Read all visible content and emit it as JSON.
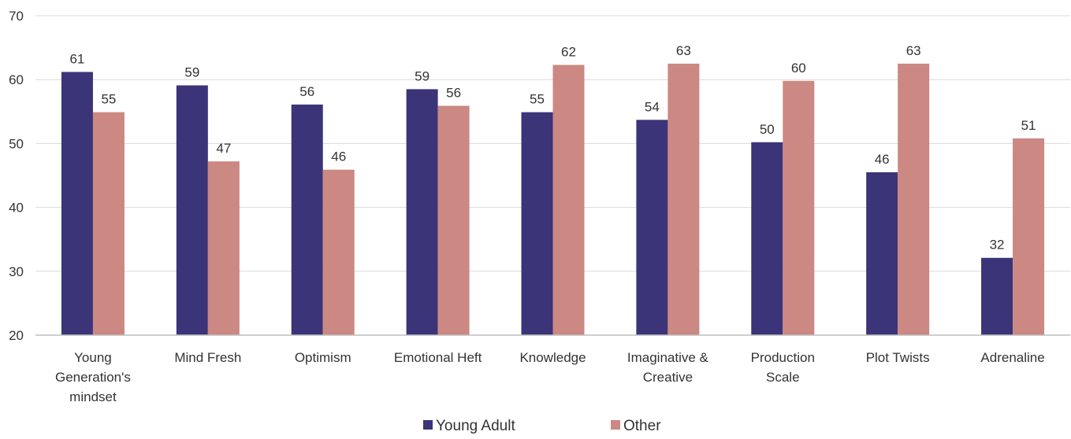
{
  "chart_data": {
    "type": "bar",
    "title": "",
    "xlabel": "",
    "ylabel": "",
    "ylim": [
      20,
      70
    ],
    "yticks": [
      20,
      30,
      40,
      50,
      60,
      70
    ],
    "grid": true,
    "legend_position": "bottom",
    "categories": [
      [
        "Young",
        "Generation's",
        "mindset"
      ],
      [
        "Mind Fresh"
      ],
      [
        "Optimism"
      ],
      [
        "Emotional Heft"
      ],
      [
        "Knowledge"
      ],
      [
        "Imaginative &",
        "Creative"
      ],
      [
        "Production",
        "Scale"
      ],
      [
        "Plot Twists"
      ],
      [
        "Adrenaline"
      ]
    ],
    "series": [
      {
        "name": "Young Adult",
        "color": "#3b3478",
        "values": [
          61.2,
          59.1,
          56.1,
          58.5,
          54.9,
          53.7,
          50.2,
          45.5,
          32.1
        ],
        "labels": [
          "61",
          "59",
          "56",
          "59",
          "55",
          "54",
          "50",
          "46",
          "32"
        ]
      },
      {
        "name": "Other",
        "color": "#cc8882",
        "values": [
          54.9,
          47.2,
          45.9,
          55.9,
          62.3,
          62.5,
          59.8,
          62.5,
          50.8
        ],
        "labels": [
          "55",
          "47",
          "46",
          "56",
          "62",
          "63",
          "60",
          "63",
          "51"
        ]
      }
    ]
  }
}
